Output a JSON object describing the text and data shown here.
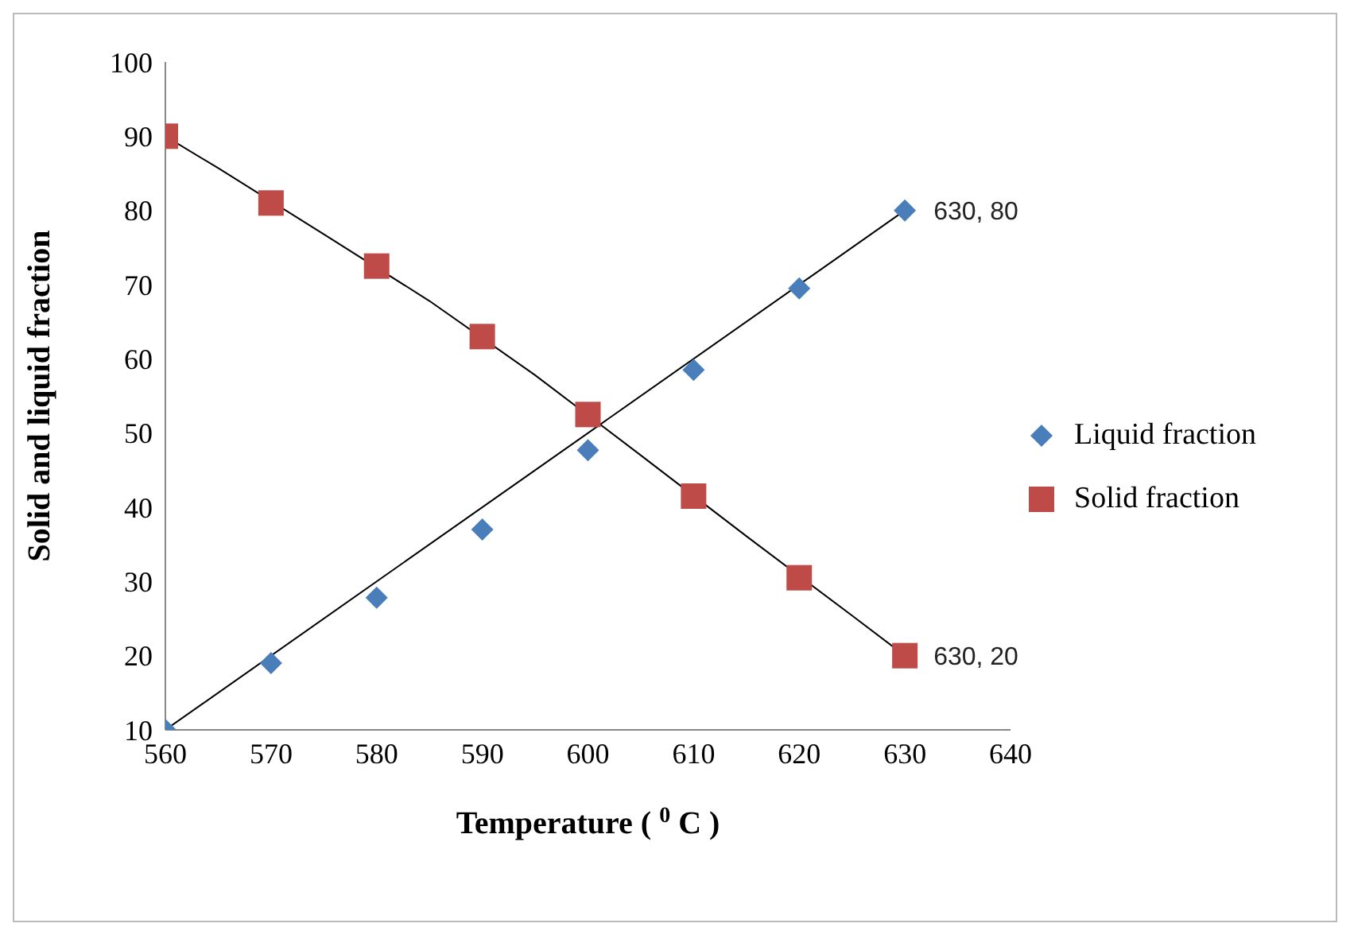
{
  "chart_data": {
    "type": "scatter",
    "xlabel": "Temperature ( $^{0}$ C )",
    "ylabel": "Solid and liquid fraction",
    "xlim": [
      560,
      640
    ],
    "xticks": [
      560,
      570,
      580,
      590,
      600,
      610,
      620,
      630,
      640
    ],
    "ylim": [
      10,
      100
    ],
    "yticks": [
      10,
      20,
      30,
      40,
      50,
      60,
      70,
      80,
      90,
      100
    ],
    "grid": false,
    "legend": "right",
    "series": [
      {
        "name": "Liquid fraction",
        "marker": "diamond",
        "color": "#4a7ebb",
        "x": [
          560,
          570,
          580,
          590,
          600,
          610,
          620,
          630
        ],
        "values": [
          10,
          19,
          27.8,
          37,
          47.7,
          58.5,
          69.5,
          80
        ]
      },
      {
        "name": "Solid fraction",
        "marker": "square",
        "color": "#be4b48",
        "x": [
          560,
          570,
          580,
          590,
          600,
          610,
          620,
          630
        ],
        "values": [
          90,
          81,
          72.5,
          63,
          52.5,
          41.5,
          30.5,
          20
        ]
      },
      {
        "type": "line",
        "marker": "none",
        "color": "#000000",
        "x": [
          560,
          595,
          630
        ],
        "values": [
          10,
          45,
          80
        ]
      },
      {
        "type": "line",
        "marker": "none",
        "color": "#000000",
        "x": [
          560,
          565,
          575,
          585,
          595,
          605,
          615,
          625,
          630
        ],
        "values": [
          90,
          85.7,
          76.8,
          67.8,
          57.8,
          47,
          36.1,
          25.4,
          20
        ]
      }
    ],
    "annotations": [
      {
        "text": "630, 80",
        "x": 630,
        "y": 80
      },
      {
        "text": "630, 20",
        "x": 630,
        "y": 20
      }
    ]
  }
}
